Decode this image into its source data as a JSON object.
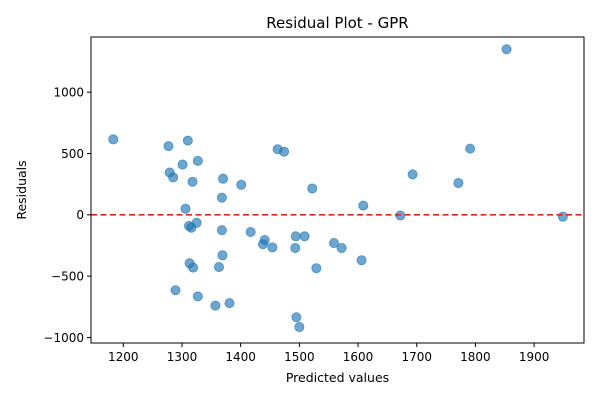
{
  "chart_data": {
    "type": "scatter",
    "title": "Residual Plot - GPR",
    "xlabel": "Predicted values",
    "ylabel": "Residuals",
    "xlim": [
      1145,
      1985
    ],
    "ylim": [
      -1045,
      1450
    ],
    "xticks": [
      1200,
      1300,
      1400,
      1500,
      1600,
      1700,
      1800,
      1900
    ],
    "yticks": [
      -1000,
      -500,
      0,
      500,
      1000
    ],
    "grid": false,
    "reference_line": {
      "y": 0,
      "style": "dashed",
      "color": "#d62728"
    },
    "marker_color": "#1f77b4",
    "points": [
      {
        "x": 1183,
        "y": 615
      },
      {
        "x": 1277,
        "y": 560
      },
      {
        "x": 1279,
        "y": 345
      },
      {
        "x": 1285,
        "y": 305
      },
      {
        "x": 1289,
        "y": -615
      },
      {
        "x": 1301,
        "y": 410
      },
      {
        "x": 1306,
        "y": 50
      },
      {
        "x": 1310,
        "y": 605
      },
      {
        "x": 1312,
        "y": -90
      },
      {
        "x": 1313,
        "y": -395
      },
      {
        "x": 1316,
        "y": -105
      },
      {
        "x": 1318,
        "y": 270
      },
      {
        "x": 1319,
        "y": -430
      },
      {
        "x": 1325,
        "y": -65
      },
      {
        "x": 1327,
        "y": 440
      },
      {
        "x": 1327,
        "y": -665
      },
      {
        "x": 1357,
        "y": -740
      },
      {
        "x": 1363,
        "y": -425
      },
      {
        "x": 1368,
        "y": 140
      },
      {
        "x": 1368,
        "y": -125
      },
      {
        "x": 1369,
        "y": -330
      },
      {
        "x": 1370,
        "y": 295
      },
      {
        "x": 1381,
        "y": -720
      },
      {
        "x": 1401,
        "y": 245
      },
      {
        "x": 1417,
        "y": -140
      },
      {
        "x": 1438,
        "y": -240
      },
      {
        "x": 1441,
        "y": -205
      },
      {
        "x": 1454,
        "y": -265
      },
      {
        "x": 1463,
        "y": 535
      },
      {
        "x": 1474,
        "y": 515
      },
      {
        "x": 1493,
        "y": -270
      },
      {
        "x": 1494,
        "y": -175
      },
      {
        "x": 1495,
        "y": -835
      },
      {
        "x": 1500,
        "y": -915
      },
      {
        "x": 1509,
        "y": -175
      },
      {
        "x": 1522,
        "y": 215
      },
      {
        "x": 1529,
        "y": -435
      },
      {
        "x": 1559,
        "y": -230
      },
      {
        "x": 1572,
        "y": -270
      },
      {
        "x": 1606,
        "y": -370
      },
      {
        "x": 1609,
        "y": 75
      },
      {
        "x": 1672,
        "y": -5
      },
      {
        "x": 1693,
        "y": 330
      },
      {
        "x": 1771,
        "y": 260
      },
      {
        "x": 1791,
        "y": 540
      },
      {
        "x": 1853,
        "y": 1350
      },
      {
        "x": 1949,
        "y": -15
      }
    ]
  }
}
